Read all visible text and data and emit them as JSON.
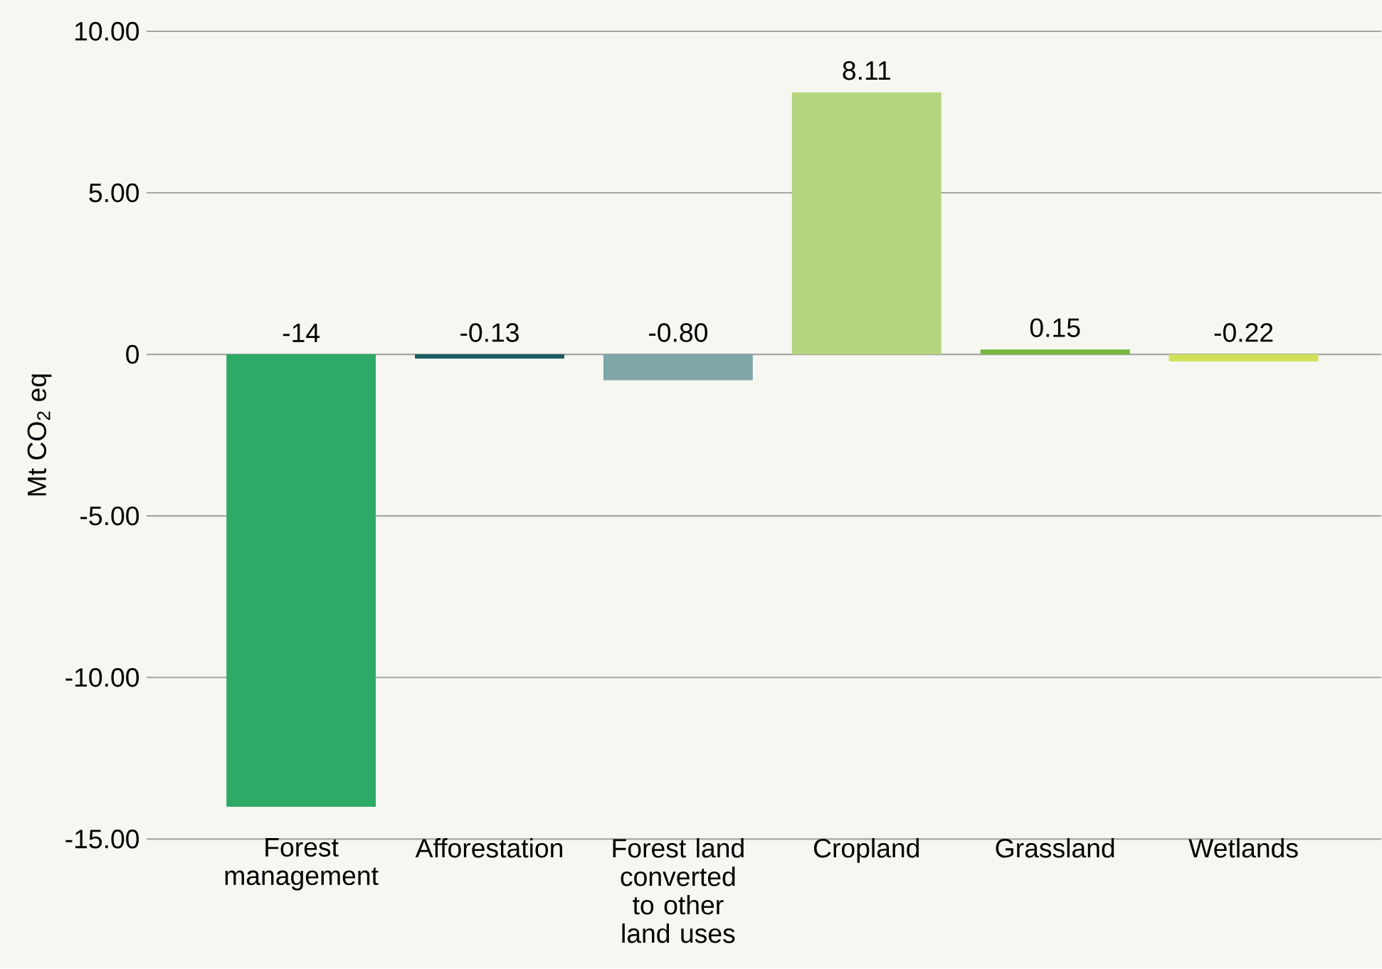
{
  "chart_data": {
    "type": "bar",
    "ylabel": "Mt CO$_{2}$ eq",
    "categories": [
      "Forest management",
      "Afforestation",
      "Forest land converted to other land uses",
      "Cropland",
      "Grassland",
      "Wetlands"
    ],
    "values": [
      -14,
      -0.13,
      -0.8,
      8.11,
      0.15,
      -0.22
    ],
    "value_labels": [
      "-14",
      "-0.13",
      "-0.80",
      "8.11",
      "0.15",
      "-0.22"
    ],
    "colors": [
      "#2eaa66",
      "#1b5e62",
      "#7fa6a8",
      "#b5d57e",
      "#76b83c",
      "#d3e05c"
    ],
    "ylim": [
      -15,
      10
    ],
    "yticks": [
      {
        "value": -15,
        "label": "-15.00"
      },
      {
        "value": -10,
        "label": "-10.00"
      },
      {
        "value": -5,
        "label": "-5.00"
      },
      0,
      {
        "value": 5,
        "label": "5.00"
      },
      {
        "value": 10,
        "label": "10.00"
      }
    ],
    "grid": "y"
  }
}
